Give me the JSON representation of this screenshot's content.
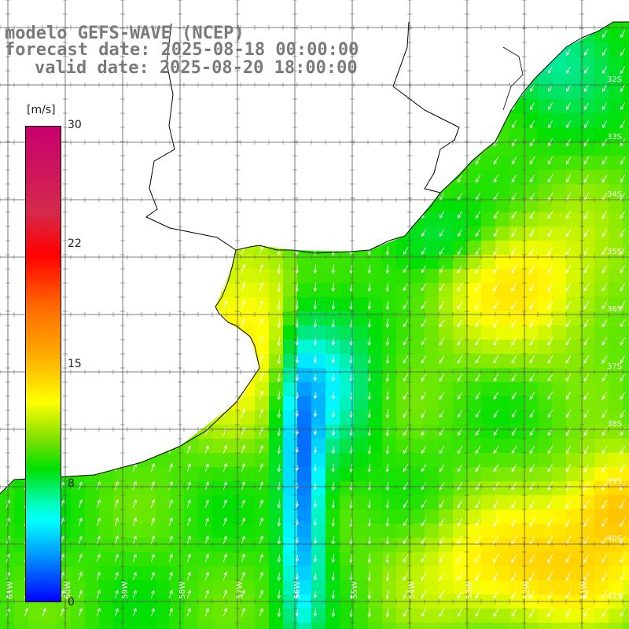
{
  "header": {
    "line1": "modelo GEFS-WAVE (NCEP)",
    "line2": "forecast date: 2025-08-18 00:00:00",
    "line3": "valid date: 2025-08-20 18:00:00"
  },
  "colorbar": {
    "unit": "[m/s]",
    "ticks": [
      "30",
      "22",
      "15",
      "8",
      "0"
    ],
    "colors": [
      "#c8006e",
      "#ff0000",
      "#ff6a00",
      "#ffff00",
      "#00e000",
      "#00ffff",
      "#0000ff"
    ]
  },
  "lat_labels": [
    "32S",
    "33S",
    "34S",
    "35S",
    "36S",
    "37S",
    "38S",
    "39S",
    "40S",
    "41S"
  ],
  "lon_labels": [
    "61W",
    "60W",
    "59W",
    "58W",
    "57W",
    "56W",
    "55W",
    "54W",
    "53W",
    "52W",
    "51W"
  ],
  "theme": {
    "land": "#ffffff",
    "grid": "#555555",
    "coast": "#000000",
    "arrow": "#ffffff"
  }
}
